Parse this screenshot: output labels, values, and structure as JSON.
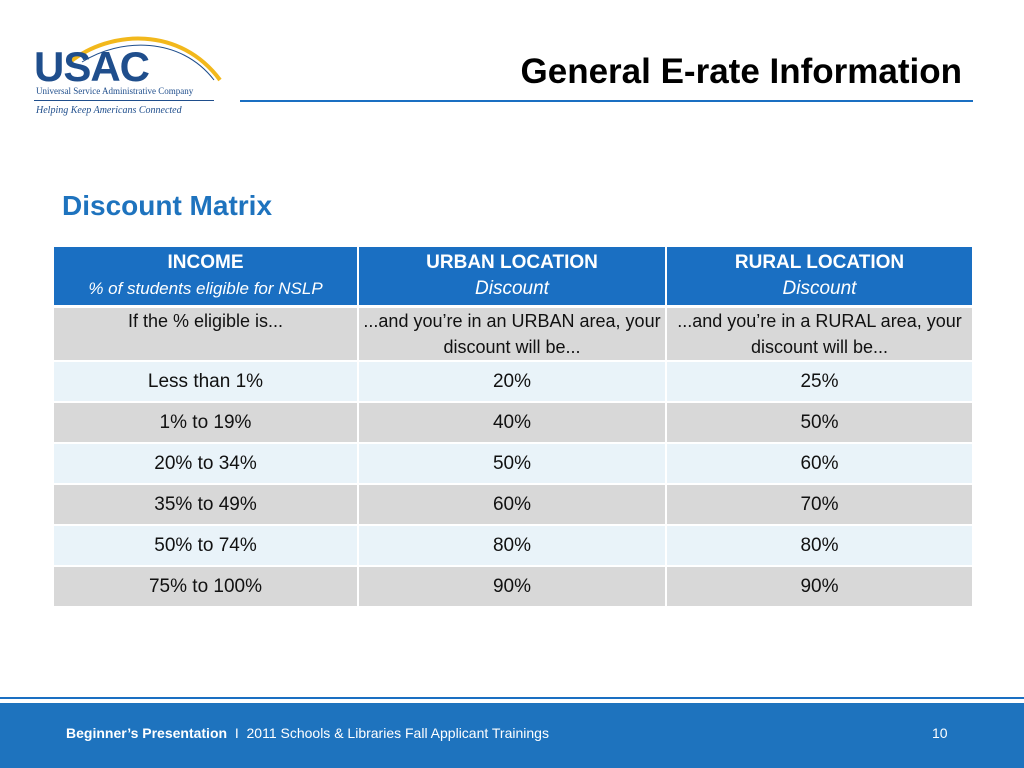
{
  "logo": {
    "name": "USAC",
    "full_name": "Universal Service Administrative Company",
    "tagline": "Helping Keep Americans Connected"
  },
  "slide": {
    "title": "General E-rate Information",
    "subtitle": "Discount Matrix"
  },
  "table": {
    "headers": [
      {
        "main": "INCOME",
        "sub": "% of students eligible for NSLP"
      },
      {
        "main": "URBAN LOCATION",
        "sub": "Discount"
      },
      {
        "main": "RURAL LOCATION",
        "sub": "Discount"
      }
    ],
    "explain": [
      "If the % eligible is...",
      "...and you’re in an URBAN area, your discount will be...",
      "...and you’re in a RURAL area, your discount will be..."
    ],
    "rows": [
      [
        "Less than 1%",
        "20%",
        "25%"
      ],
      [
        "1% to 19%",
        "40%",
        "50%"
      ],
      [
        "20% to 34%",
        "50%",
        "60%"
      ],
      [
        "35% to 49%",
        "60%",
        "70%"
      ],
      [
        "50% to 74%",
        "80%",
        "80%"
      ],
      [
        "75% to 100%",
        "90%",
        "90%"
      ]
    ]
  },
  "footer": {
    "presentation": "Beginner’s Presentation",
    "separator": "I",
    "event": "2011 Schools & Libraries Fall Applicant Trainings",
    "page_number": "10"
  },
  "colors": {
    "accent_blue": "#1a6fc2",
    "title_blue": "#1e73be",
    "logo_arc_yellow": "#f2b81c",
    "row_light": "#e9f3f9",
    "row_dark": "#d8d8d8"
  }
}
